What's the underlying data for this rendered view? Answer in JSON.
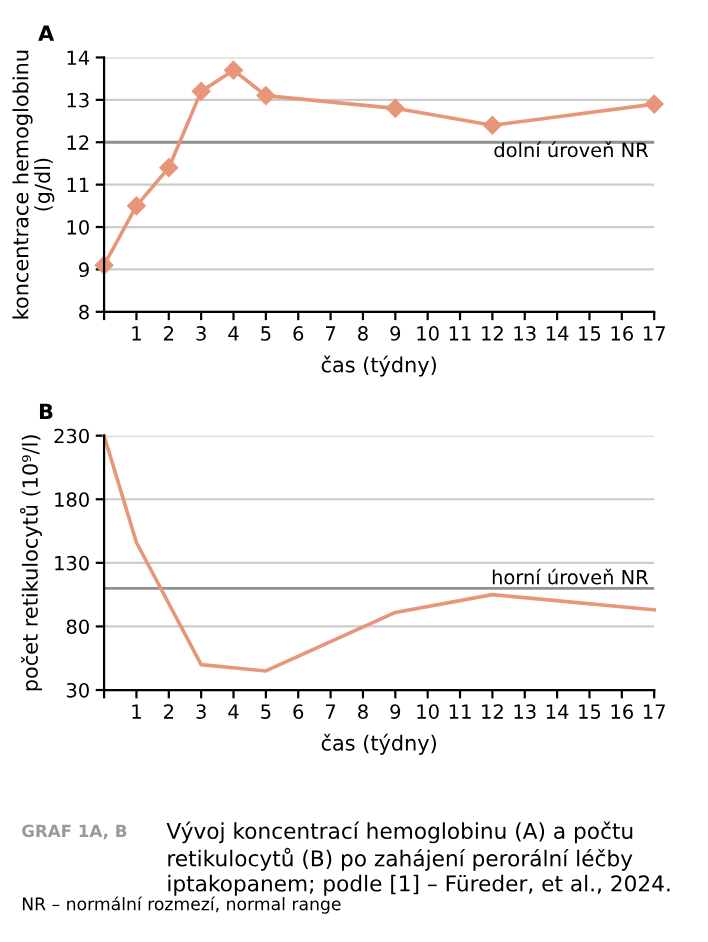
{
  "chart_data": [
    {
      "type": "line",
      "title": "A",
      "xlabel": "čas (týdny)",
      "ylabel": "koncentrace hemoglobinu\n(g/dl)",
      "x": [
        0,
        1,
        2,
        3,
        4,
        5,
        9,
        12,
        17
      ],
      "series": [
        {
          "color": "#e8967a",
          "values": [
            9.1,
            10.5,
            11.4,
            13.2,
            13.7,
            13.1,
            12.8,
            12.4,
            12.9
          ]
        }
      ],
      "marker": "diamond",
      "grid": "y",
      "xlim": [
        0,
        17
      ],
      "xticks": [
        {
          "value": 0,
          "label": null
        },
        1,
        2,
        3,
        4,
        5,
        6,
        7,
        8,
        9,
        10,
        11,
        12,
        13,
        14,
        15,
        16,
        17
      ],
      "ylim": [
        8,
        14
      ],
      "yticks": [
        8,
        9,
        10,
        11,
        12,
        13,
        14
      ],
      "ref_lines": [
        {
          "axis": "y",
          "value": 12,
          "label": "dolní úroveň NR",
          "color": "#909090"
        }
      ]
    },
    {
      "type": "line",
      "title": "B",
      "xlabel": "čas (týdny)",
      "ylabel": "počet retikulocytů (10⁹/l)",
      "x": [
        0,
        1,
        3,
        5,
        9,
        12,
        17
      ],
      "series": [
        {
          "color": "#e8967a",
          "values": [
            230,
            146,
            50,
            45,
            91,
            105,
            93
          ]
        }
      ],
      "marker": "none",
      "grid": "y",
      "xlim": [
        0,
        17
      ],
      "xticks": [
        {
          "value": 0,
          "label": null
        },
        1,
        2,
        3,
        4,
        5,
        6,
        7,
        8,
        9,
        10,
        11,
        12,
        13,
        14,
        15,
        16,
        17
      ],
      "ylim": [
        30,
        230
      ],
      "yticks": [
        30,
        80,
        130,
        180,
        230
      ],
      "ref_lines": [
        {
          "axis": "y",
          "value": 110,
          "label": "horní úroveň NR",
          "color": "#909090"
        }
      ],
      "annotations": [
        "GRAF 1A, B",
        "Vývoj koncentrací hemoglobinu (A) a počtu retikulocytů (B) po zahájení perorální léčby iptakopanem; podle [1] – Füreder, et al., 2024.",
        "NR – normální rozmezí, normal range"
      ]
    }
  ]
}
